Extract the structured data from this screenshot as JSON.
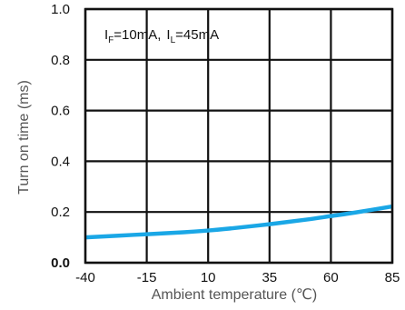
{
  "chart_data": {
    "type": "line",
    "title": "",
    "xlabel": "Ambient temperature (℃)",
    "ylabel": "Turn on time (ms)",
    "xlim": [
      -40,
      85
    ],
    "ylim": [
      0.0,
      1.0
    ],
    "x_ticks": [
      "-40",
      "-15",
      "10",
      "35",
      "60",
      "85"
    ],
    "y_ticks": [
      "0.0",
      "0.2",
      "0.4",
      "0.6",
      "0.8",
      "1.0"
    ],
    "grid": true,
    "legend": "none",
    "annotation": {
      "if_main": "I",
      "if_sub": "F",
      "if_value": "=10mA,",
      "il_main": "I",
      "il_sub": "L",
      "il_value": "=45mA"
    },
    "series": [
      {
        "color": "#1aa7e6",
        "x": [
          -40,
          -20,
          0,
          10,
          20,
          35,
          50,
          60,
          70,
          85
        ],
        "y": [
          0.1,
          0.11,
          0.12,
          0.127,
          0.136,
          0.152,
          0.17,
          0.184,
          0.198,
          0.222
        ]
      }
    ]
  }
}
